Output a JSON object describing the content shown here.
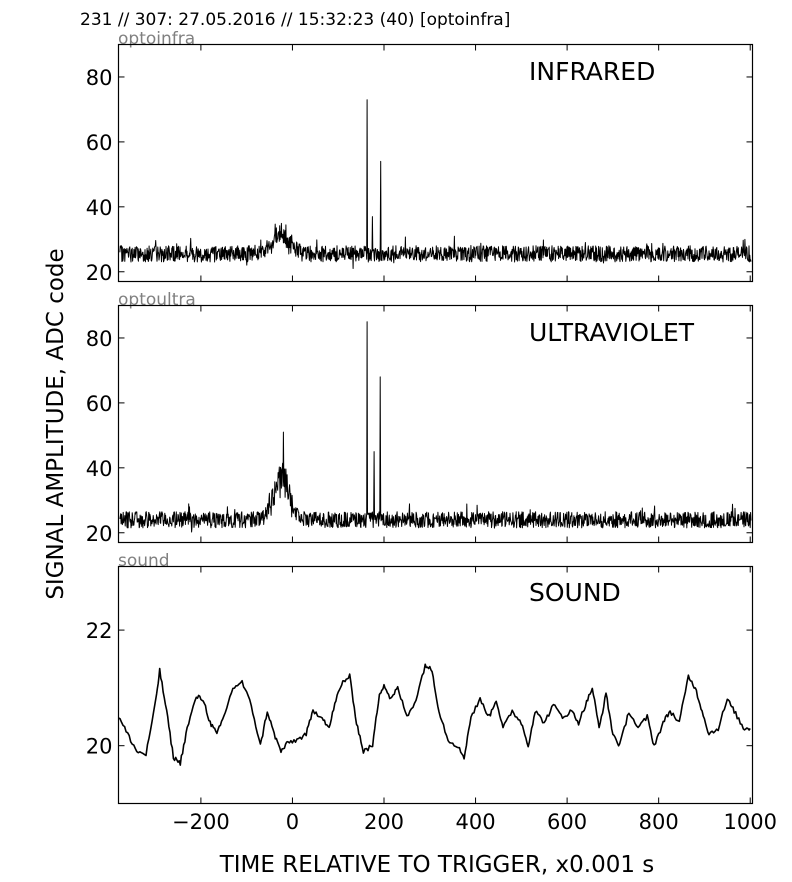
{
  "header": "231 // 307:   27.05.2016 // 15:32:23 (40)  [optoinfra]",
  "ylabel": "SIGNAL AMPLITUDE,  ADC code",
  "xlabel": "TIME RELATIVE TO TRIGGER,   x0.001 s",
  "x_ticks": [
    "−200",
    "0",
    "200",
    "400",
    "600",
    "800",
    "1000"
  ],
  "chart_data": [
    {
      "type": "line",
      "panel_label": "optoinfra",
      "title": "INFRARED",
      "xlim": [
        -380,
        1005
      ],
      "ylim": [
        17,
        90
      ],
      "yticks": [
        20,
        40,
        60,
        80
      ],
      "baseline": 25.5,
      "noise": 2.5,
      "bump": {
        "center": -25,
        "width": 30,
        "height": 5
      },
      "spikes": [
        {
          "x": 163,
          "y": 73
        },
        {
          "x": 175,
          "y": 37
        },
        {
          "x": 193,
          "y": 54
        }
      ],
      "dips": [
        {
          "x": 132,
          "y": 21
        }
      ]
    },
    {
      "type": "line",
      "panel_label": "optoultra",
      "title": "ULTRAVIOLET",
      "xlim": [
        -380,
        1005
      ],
      "ylim": [
        17,
        90
      ],
      "yticks": [
        20,
        40,
        60,
        80
      ],
      "baseline": 24,
      "noise": 2.5,
      "bump": {
        "center": -25,
        "width": 25,
        "height": 12
      },
      "spikes": [
        {
          "x": 163,
          "y": 85
        },
        {
          "x": 178,
          "y": 45
        },
        {
          "x": 192,
          "y": 68
        },
        {
          "x": -20,
          "y": 51
        }
      ],
      "dips": []
    },
    {
      "type": "line",
      "panel_label": "sound",
      "title": "SOUND",
      "xlim": [
        -380,
        1005
      ],
      "ylim": [
        19.0,
        23.1
      ],
      "yticks": [
        20,
        22
      ],
      "points": [
        [
          -380,
          20.5
        ],
        [
          -360,
          20.2
        ],
        [
          -340,
          19.9
        ],
        [
          -320,
          19.85
        ],
        [
          -300,
          20.7
        ],
        [
          -290,
          21.3
        ],
        [
          -275,
          20.6
        ],
        [
          -260,
          19.8
        ],
        [
          -245,
          19.7
        ],
        [
          -230,
          20.3
        ],
        [
          -210,
          20.85
        ],
        [
          -195,
          20.8
        ],
        [
          -180,
          20.4
        ],
        [
          -165,
          20.2
        ],
        [
          -150,
          20.5
        ],
        [
          -130,
          21.0
        ],
        [
          -110,
          21.1
        ],
        [
          -90,
          20.7
        ],
        [
          -70,
          20.0
        ],
        [
          -55,
          20.6
        ],
        [
          -40,
          20.2
        ],
        [
          -25,
          19.9
        ],
        [
          -10,
          20.05
        ],
        [
          10,
          20.1
        ],
        [
          30,
          20.2
        ],
        [
          45,
          20.6
        ],
        [
          65,
          20.5
        ],
        [
          80,
          20.3
        ],
        [
          95,
          20.8
        ],
        [
          110,
          21.1
        ],
        [
          125,
          21.2
        ],
        [
          140,
          20.4
        ],
        [
          155,
          19.9
        ],
        [
          175,
          20.0
        ],
        [
          190,
          20.9
        ],
        [
          200,
          21.05
        ],
        [
          215,
          20.8
        ],
        [
          230,
          21.0
        ],
        [
          250,
          20.5
        ],
        [
          270,
          20.8
        ],
        [
          290,
          21.4
        ],
        [
          305,
          21.3
        ],
        [
          320,
          20.6
        ],
        [
          340,
          20.1
        ],
        [
          360,
          20.0
        ],
        [
          375,
          19.8
        ],
        [
          390,
          20.5
        ],
        [
          410,
          20.8
        ],
        [
          430,
          20.5
        ],
        [
          445,
          20.8
        ],
        [
          460,
          20.3
        ],
        [
          480,
          20.6
        ],
        [
          500,
          20.4
        ],
        [
          515,
          20.0
        ],
        [
          530,
          20.6
        ],
        [
          550,
          20.4
        ],
        [
          570,
          20.7
        ],
        [
          590,
          20.5
        ],
        [
          610,
          20.6
        ],
        [
          625,
          20.4
        ],
        [
          640,
          20.7
        ],
        [
          655,
          21.0
        ],
        [
          670,
          20.3
        ],
        [
          685,
          20.9
        ],
        [
          700,
          20.2
        ],
        [
          715,
          20.0
        ],
        [
          735,
          20.6
        ],
        [
          755,
          20.3
        ],
        [
          775,
          20.5
        ],
        [
          790,
          20.0
        ],
        [
          810,
          20.4
        ],
        [
          825,
          20.6
        ],
        [
          845,
          20.4
        ],
        [
          865,
          21.2
        ],
        [
          880,
          21.0
        ],
        [
          895,
          20.6
        ],
        [
          910,
          20.2
        ],
        [
          930,
          20.3
        ],
        [
          950,
          20.8
        ],
        [
          965,
          20.6
        ],
        [
          985,
          20.3
        ],
        [
          1000,
          20.3
        ]
      ]
    }
  ]
}
